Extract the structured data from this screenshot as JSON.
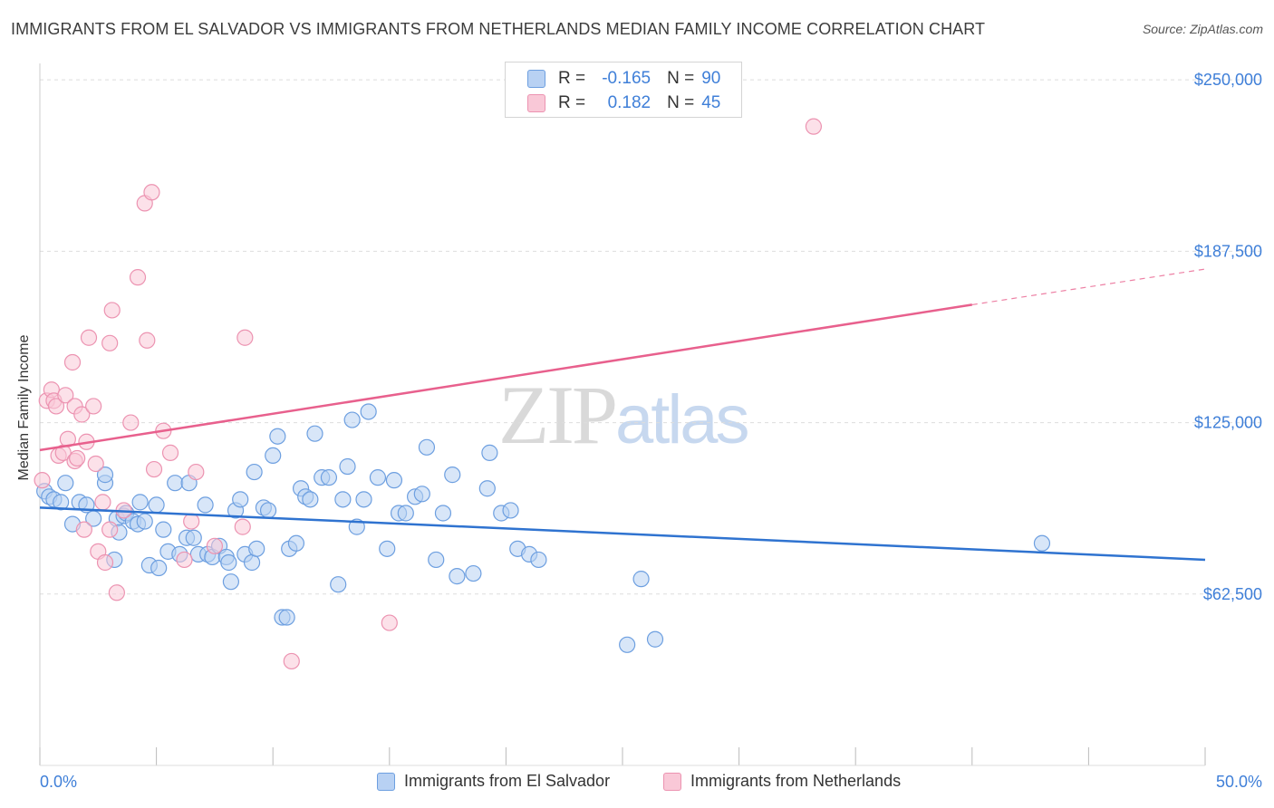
{
  "title": "IMMIGRANTS FROM EL SALVADOR VS IMMIGRANTS FROM NETHERLANDS MEDIAN FAMILY INCOME CORRELATION CHART",
  "source": "Source: ZipAtlas.com",
  "watermark": {
    "zip": "ZIP",
    "atlas": "atlas"
  },
  "stats": [
    {
      "r_label": "R =",
      "r_value": "-0.165",
      "n_label": "N =",
      "n_value": "90"
    },
    {
      "r_label": "R =",
      "r_value": "0.182",
      "n_label": "N =",
      "n_value": "45"
    }
  ],
  "legend": [
    {
      "label": "Immigrants from El Salvador"
    },
    {
      "label": "Immigrants from Netherlands"
    }
  ],
  "colors": {
    "blue_fill": "#b8d1f3",
    "blue_stroke": "#6d9fe0",
    "blue_line": "#2f73d0",
    "pink_fill": "#f9c8d7",
    "pink_stroke": "#ec93b1",
    "pink_line": "#e8608d",
    "axis_text": "#3f7fd8",
    "grid": "#dddddd"
  },
  "chart_data": {
    "type": "scatter",
    "xlabel": "",
    "ylabel": "Median Family Income",
    "xlim": [
      0,
      50
    ],
    "ylim": [
      0,
      256000
    ],
    "x_tick_labels": [
      "0.0%",
      "50.0%"
    ],
    "y_ticks": [
      62500,
      125000,
      187500,
      250000
    ],
    "y_tick_labels": [
      "$62,500",
      "$125,000",
      "$187,500",
      "$250,000"
    ],
    "grid": true,
    "series": [
      {
        "name": "Immigrants from El Salvador",
        "color": "blue",
        "points": [
          [
            0.2,
            100000
          ],
          [
            0.4,
            98000
          ],
          [
            0.6,
            97000
          ],
          [
            0.9,
            96000
          ],
          [
            1.1,
            103000
          ],
          [
            1.4,
            88000
          ],
          [
            1.7,
            96000
          ],
          [
            2.0,
            95000
          ],
          [
            2.3,
            90000
          ],
          [
            2.8,
            103000
          ],
          [
            2.8,
            106000
          ],
          [
            3.2,
            75000
          ],
          [
            3.3,
            90000
          ],
          [
            3.4,
            85000
          ],
          [
            3.6,
            91000
          ],
          [
            3.7,
            92000
          ],
          [
            4.0,
            89000
          ],
          [
            4.2,
            88000
          ],
          [
            4.3,
            96000
          ],
          [
            4.5,
            89000
          ],
          [
            4.7,
            73000
          ],
          [
            5.0,
            95000
          ],
          [
            5.1,
            72000
          ],
          [
            5.3,
            86000
          ],
          [
            5.5,
            78000
          ],
          [
            5.8,
            103000
          ],
          [
            6.0,
            77000
          ],
          [
            6.3,
            83000
          ],
          [
            6.4,
            103000
          ],
          [
            6.6,
            83000
          ],
          [
            6.8,
            77000
          ],
          [
            7.1,
            95000
          ],
          [
            7.2,
            77000
          ],
          [
            7.4,
            76000
          ],
          [
            7.7,
            80000
          ],
          [
            8.0,
            76000
          ],
          [
            8.1,
            74000
          ],
          [
            8.2,
            67000
          ],
          [
            8.4,
            93000
          ],
          [
            8.6,
            97000
          ],
          [
            8.8,
            77000
          ],
          [
            9.1,
            74000
          ],
          [
            9.2,
            107000
          ],
          [
            9.3,
            79000
          ],
          [
            9.6,
            94000
          ],
          [
            9.8,
            93000
          ],
          [
            10.0,
            113000
          ],
          [
            10.2,
            120000
          ],
          [
            10.4,
            54000
          ],
          [
            10.6,
            54000
          ],
          [
            10.7,
            79000
          ],
          [
            11.0,
            81000
          ],
          [
            11.2,
            101000
          ],
          [
            11.4,
            98000
          ],
          [
            11.6,
            97000
          ],
          [
            11.8,
            121000
          ],
          [
            12.1,
            105000
          ],
          [
            12.4,
            105000
          ],
          [
            12.8,
            66000
          ],
          [
            13.0,
            97000
          ],
          [
            13.2,
            109000
          ],
          [
            13.4,
            126000
          ],
          [
            13.6,
            87000
          ],
          [
            13.9,
            97000
          ],
          [
            14.1,
            129000
          ],
          [
            14.5,
            105000
          ],
          [
            14.9,
            79000
          ],
          [
            15.2,
            104000
          ],
          [
            15.4,
            92000
          ],
          [
            15.7,
            92000
          ],
          [
            16.1,
            98000
          ],
          [
            16.4,
            99000
          ],
          [
            16.6,
            116000
          ],
          [
            17.0,
            75000
          ],
          [
            17.3,
            92000
          ],
          [
            17.7,
            106000
          ],
          [
            17.9,
            69000
          ],
          [
            18.6,
            70000
          ],
          [
            19.2,
            101000
          ],
          [
            19.3,
            114000
          ],
          [
            19.8,
            92000
          ],
          [
            20.2,
            93000
          ],
          [
            20.5,
            79000
          ],
          [
            21.0,
            77000
          ],
          [
            21.4,
            75000
          ],
          [
            25.2,
            44000
          ],
          [
            25.8,
            68000
          ],
          [
            26.4,
            46000
          ],
          [
            43.0,
            81000
          ]
        ]
      },
      {
        "name": "Immigrants from Netherlands",
        "color": "pink",
        "points": [
          [
            0.1,
            104000
          ],
          [
            0.3,
            133000
          ],
          [
            0.5,
            137000
          ],
          [
            0.6,
            133000
          ],
          [
            0.7,
            131000
          ],
          [
            0.8,
            113000
          ],
          [
            1.0,
            114000
          ],
          [
            1.1,
            135000
          ],
          [
            1.2,
            119000
          ],
          [
            1.4,
            147000
          ],
          [
            1.5,
            131000
          ],
          [
            1.5,
            111000
          ],
          [
            1.6,
            112000
          ],
          [
            1.8,
            128000
          ],
          [
            1.9,
            86000
          ],
          [
            2.0,
            118000
          ],
          [
            2.1,
            156000
          ],
          [
            2.3,
            131000
          ],
          [
            2.4,
            110000
          ],
          [
            2.5,
            78000
          ],
          [
            2.7,
            96000
          ],
          [
            2.8,
            74000
          ],
          [
            3.0,
            86000
          ],
          [
            3.0,
            154000
          ],
          [
            3.1,
            166000
          ],
          [
            3.3,
            63000
          ],
          [
            3.6,
            93000
          ],
          [
            3.9,
            125000
          ],
          [
            4.2,
            178000
          ],
          [
            4.5,
            205000
          ],
          [
            4.6,
            155000
          ],
          [
            4.8,
            209000
          ],
          [
            4.9,
            108000
          ],
          [
            5.3,
            122000
          ],
          [
            5.6,
            114000
          ],
          [
            6.2,
            75000
          ],
          [
            6.5,
            89000
          ],
          [
            6.7,
            107000
          ],
          [
            7.5,
            80000
          ],
          [
            8.7,
            87000
          ],
          [
            8.8,
            156000
          ],
          [
            10.8,
            38000
          ],
          [
            15.0,
            52000
          ],
          [
            33.2,
            233000
          ]
        ]
      }
    ],
    "trendlines": [
      {
        "series": "Immigrants from El Salvador",
        "x": [
          0,
          50
        ],
        "y": [
          94000,
          75000
        ]
      },
      {
        "series": "Immigrants from Netherlands",
        "x": [
          0,
          40,
          50
        ],
        "y": [
          115000,
          168000,
          181000
        ],
        "dashed_from_x": 40
      }
    ]
  }
}
